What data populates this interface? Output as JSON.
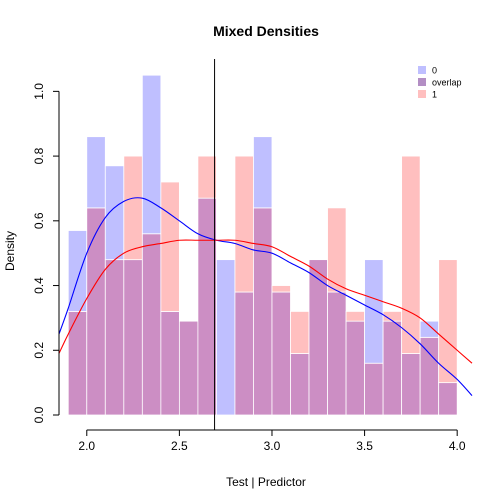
{
  "chart_data": {
    "type": "bar",
    "title": "Mixed Densities",
    "xlabel": "Test | Predictor",
    "ylabel": "Density",
    "xlim": [
      1.85,
      4.08
    ],
    "ylim": [
      0,
      1.1
    ],
    "x_ticks": [
      2.0,
      2.5,
      3.0,
      3.5,
      4.0
    ],
    "x_tick_labels": [
      "2.0",
      "2.5",
      "3.0",
      "3.5",
      "4.0"
    ],
    "y_ticks": [
      0.0,
      0.2,
      0.4,
      0.6,
      0.8,
      1.0
    ],
    "y_tick_labels": [
      "0.0",
      "0.2",
      "0.4",
      "0.6",
      "0.8",
      "1.0"
    ],
    "grid": false,
    "legend_position": "top-right",
    "bin_edges": [
      1.9,
      2.0,
      2.1,
      2.2,
      2.3,
      2.4,
      2.5,
      2.6,
      2.7,
      2.8,
      2.9,
      3.0,
      3.1,
      3.2,
      3.3,
      3.4,
      3.5,
      3.6,
      3.7,
      3.8,
      3.9,
      4.0
    ],
    "series": [
      {
        "name": "0",
        "color": "#bfbfff",
        "values": [
          0.57,
          0.86,
          0.77,
          0.48,
          1.05,
          0.32,
          0.29,
          0.67,
          0.48,
          0.38,
          0.86,
          0.38,
          0.19,
          0.48,
          0.38,
          0.29,
          0.48,
          0.29,
          0.19,
          0.29,
          0.1
        ]
      },
      {
        "name": "1",
        "color": "#ffbfbf",
        "values": [
          0.32,
          0.64,
          0.48,
          0.8,
          0.56,
          0.72,
          0.29,
          0.8,
          0.0,
          0.8,
          0.64,
          0.4,
          0.32,
          0.48,
          0.64,
          0.32,
          0.16,
          0.32,
          0.8,
          0.24,
          0.48
        ]
      }
    ],
    "overlap_label": "overlap",
    "overlap_color": "#cc8ec4",
    "density_curves": [
      {
        "name": "0",
        "color": "#0000ff",
        "x": [
          1.85,
          1.9,
          2.0,
          2.1,
          2.2,
          2.3,
          2.4,
          2.5,
          2.6,
          2.7,
          2.8,
          2.9,
          3.0,
          3.1,
          3.2,
          3.3,
          3.4,
          3.5,
          3.6,
          3.7,
          3.8,
          3.9,
          4.0,
          4.08
        ],
        "y": [
          0.25,
          0.33,
          0.5,
          0.61,
          0.66,
          0.67,
          0.64,
          0.6,
          0.56,
          0.54,
          0.53,
          0.51,
          0.5,
          0.47,
          0.44,
          0.4,
          0.37,
          0.34,
          0.31,
          0.27,
          0.22,
          0.16,
          0.11,
          0.06
        ]
      },
      {
        "name": "1",
        "color": "#ff0000",
        "x": [
          1.85,
          1.9,
          2.0,
          2.1,
          2.2,
          2.3,
          2.4,
          2.5,
          2.6,
          2.7,
          2.8,
          2.9,
          3.0,
          3.1,
          3.2,
          3.3,
          3.4,
          3.5,
          3.6,
          3.7,
          3.8,
          3.9,
          4.0,
          4.08
        ],
        "y": [
          0.19,
          0.25,
          0.36,
          0.45,
          0.5,
          0.52,
          0.53,
          0.54,
          0.54,
          0.54,
          0.54,
          0.53,
          0.52,
          0.49,
          0.46,
          0.42,
          0.39,
          0.37,
          0.35,
          0.33,
          0.3,
          0.25,
          0.2,
          0.16
        ]
      }
    ],
    "cutoff_line_x": 2.69,
    "legend": [
      {
        "label": "0",
        "color": "#bfbfff"
      },
      {
        "label": "overlap",
        "color": "#b38ec4"
      },
      {
        "label": "1",
        "color": "#ffbfbf"
      }
    ]
  }
}
